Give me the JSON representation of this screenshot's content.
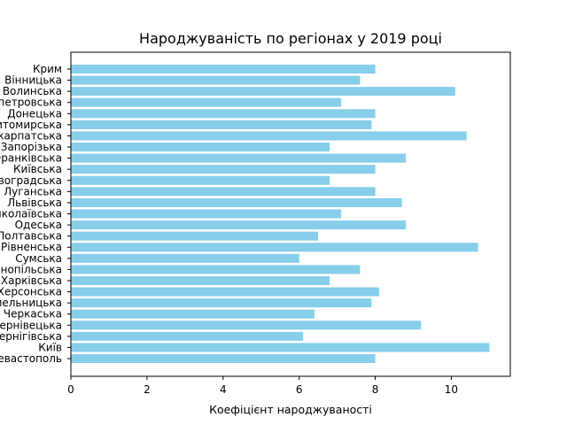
{
  "chart_data": {
    "type": "bar",
    "orientation": "horizontal",
    "title": "Народжуваність по регіонах у 2019 році",
    "xlabel": "Коефіцієнт народжуваності",
    "ylabel": "",
    "xlim": [
      0,
      11.55
    ],
    "xticks": [
      0,
      2,
      4,
      6,
      8,
      10
    ],
    "grid": false,
    "bar_color": "#87ceeb",
    "categories": [
      "Крим",
      "Вінницька",
      "Волинська",
      "Дніпропетровська",
      "Донецька",
      "Житомирська",
      "Закарпатська",
      "Запорізька",
      "Івано-Франківська",
      "Київська",
      "Кіровоградська",
      "Луганська",
      "Львівська",
      "Миколаївська",
      "Одеська",
      "Полтавська",
      "Рівненська",
      "Сумська",
      "Тернопільська",
      "Харківська",
      "Херсонська",
      "Хмельницька",
      "Черкаська",
      "Чернівецька",
      "Чернігівська",
      "Київ",
      "Севастополь"
    ],
    "values": [
      8.0,
      7.6,
      10.1,
      7.1,
      8.0,
      7.9,
      10.4,
      6.8,
      8.8,
      8.0,
      6.8,
      8.0,
      8.7,
      7.1,
      8.8,
      6.5,
      10.7,
      6.0,
      7.6,
      6.8,
      8.1,
      7.9,
      6.4,
      9.2,
      6.1,
      11.0,
      8.0
    ]
  }
}
